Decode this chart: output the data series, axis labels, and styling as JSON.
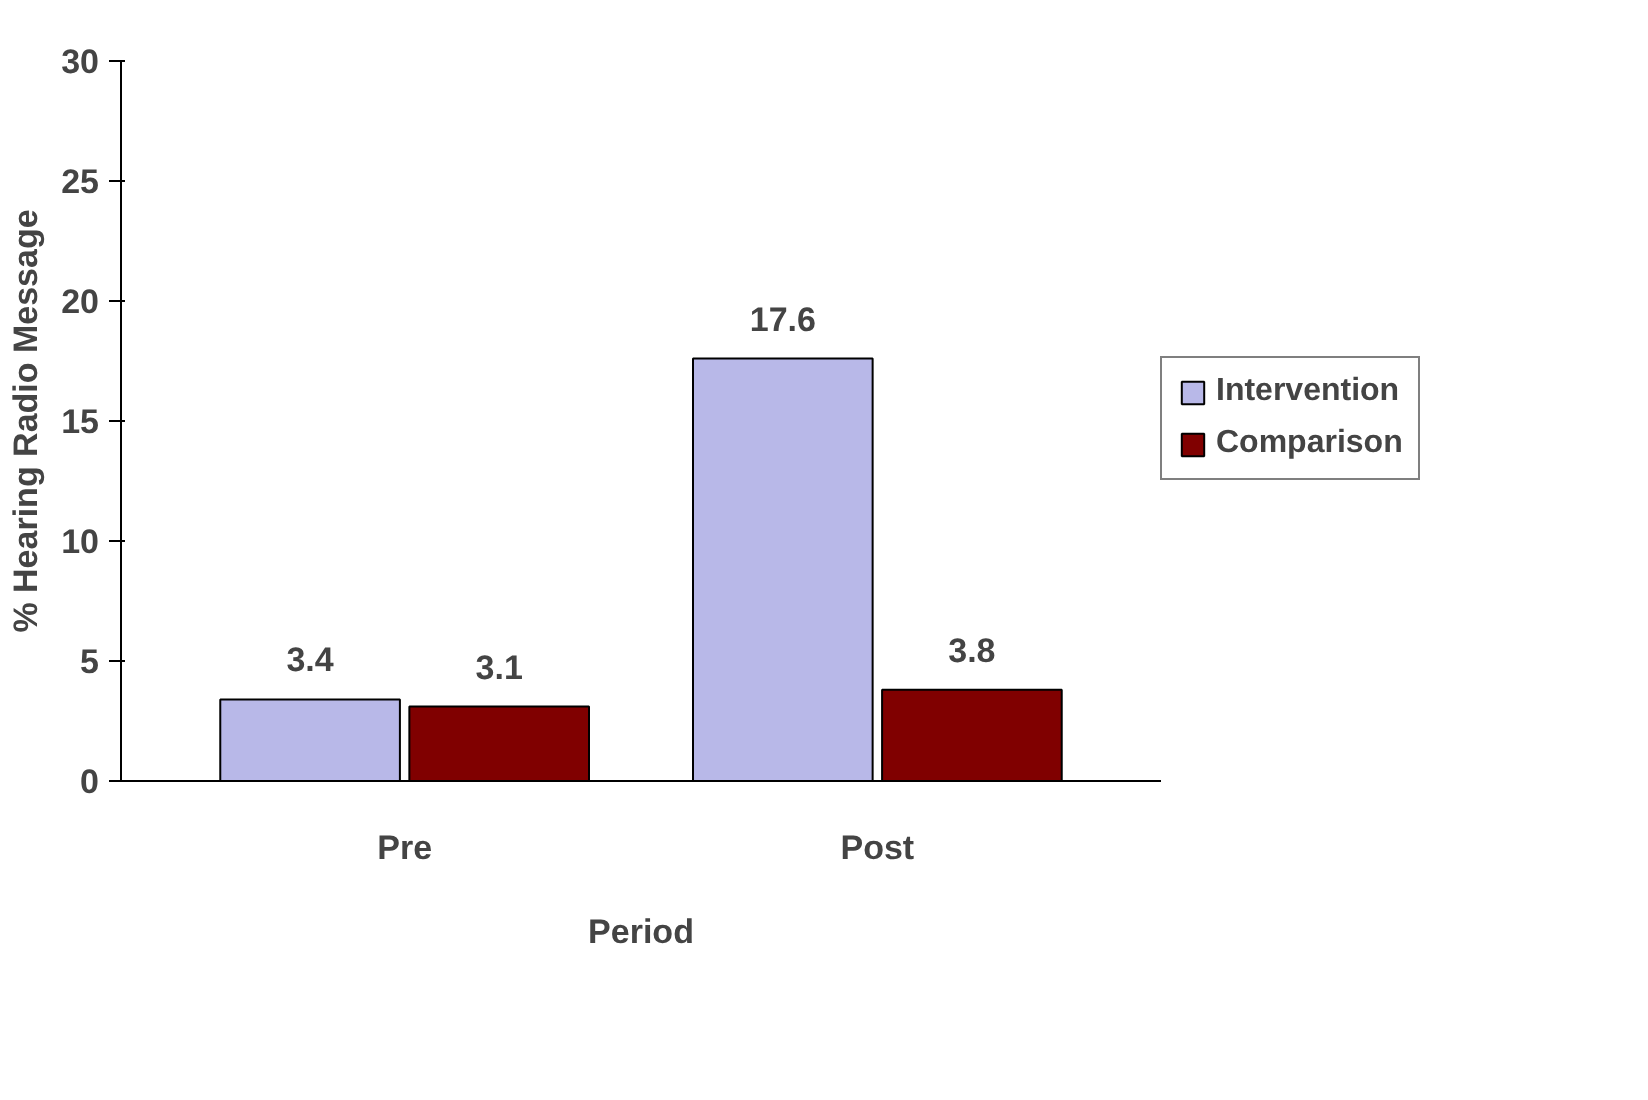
{
  "chart_data": {
    "type": "bar",
    "xlabel": "Period",
    "ylabel": "% Hearing Radio Message",
    "categories": [
      "Pre",
      "Post"
    ],
    "series": [
      {
        "name": "Intervention",
        "color": "#b8b8e8",
        "values": [
          3.4,
          17.6
        ]
      },
      {
        "name": "Comparison",
        "color": "#800000",
        "values": [
          3.1,
          3.8
        ]
      }
    ],
    "ylim": [
      0,
      30
    ],
    "yticks": [
      0,
      5,
      10,
      15,
      20,
      25,
      30
    ],
    "grid": false,
    "legend": "right",
    "data_labels": true
  }
}
